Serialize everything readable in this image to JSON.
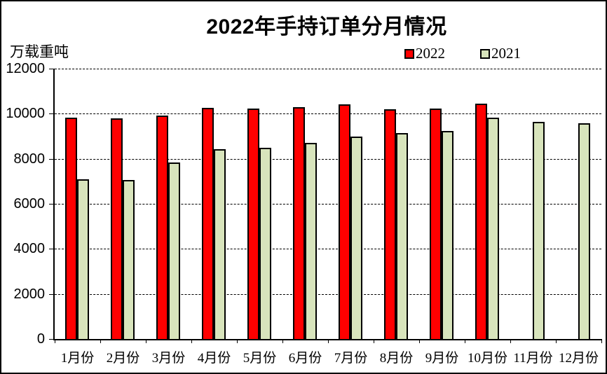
{
  "title": "2022年手持订单分月情况",
  "unit_label": "万载重吨",
  "legend": [
    {
      "label": "2022",
      "color": "#FF0000"
    },
    {
      "label": "2021",
      "color": "#D8E4BC"
    }
  ],
  "chart_data": {
    "type": "bar",
    "title": "2022年手持订单分月情况",
    "xlabel": "",
    "ylabel": "万载重吨",
    "categories": [
      "1月份",
      "2月份",
      "3月份",
      "4月份",
      "5月份",
      "6月份",
      "7月份",
      "8月份",
      "9月份",
      "10月份",
      "11月份",
      "12月份"
    ],
    "series": [
      {
        "name": "2022",
        "color": "#FF0000",
        "values": [
          9830,
          9800,
          9930,
          10260,
          10220,
          10290,
          10400,
          10210,
          10240,
          10460,
          null,
          null
        ]
      },
      {
        "name": "2021",
        "color": "#D8E4BC",
        "values": [
          7100,
          7050,
          7830,
          8430,
          8480,
          8690,
          8970,
          9130,
          9230,
          9820,
          9640,
          9590
        ]
      }
    ],
    "ylim": [
      0,
      12000
    ],
    "ytick_interval": 2000,
    "yticks": [
      "12000",
      "10000",
      "8000",
      "6000",
      "4000",
      "2000",
      "0"
    ],
    "grid": "horizontal-dashed",
    "legend_position": "top-right",
    "bar_border_color": "#000000"
  }
}
